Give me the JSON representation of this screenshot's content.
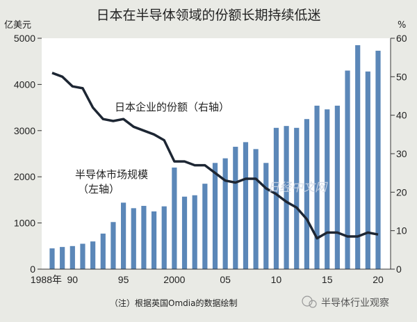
{
  "chart_data": {
    "type": "bar+line",
    "title": "日本在半导体领域的份额长期持续低迷",
    "left_axis": {
      "unit": "亿美元",
      "ticks": [
        0,
        1000,
        2000,
        3000,
        4000,
        5000
      ],
      "range": [
        0,
        5000
      ]
    },
    "right_axis": {
      "unit": "%",
      "ticks": [
        0,
        10,
        20,
        30,
        40,
        50,
        60
      ],
      "range": [
        0,
        60
      ]
    },
    "x_tick_labels": [
      {
        "year": 1988,
        "label": "1988年"
      },
      {
        "year": 1990,
        "label": "90"
      },
      {
        "year": 1995,
        "label": "95"
      },
      {
        "year": 2000,
        "label": "2000"
      },
      {
        "year": 2005,
        "label": "05"
      },
      {
        "year": 2010,
        "label": "10"
      },
      {
        "year": 2015,
        "label": "15"
      },
      {
        "year": 2020,
        "label": "20"
      }
    ],
    "years": [
      1988,
      1989,
      1990,
      1991,
      1992,
      1993,
      1994,
      1995,
      1996,
      1997,
      1998,
      1999,
      2000,
      2001,
      2002,
      2003,
      2004,
      2005,
      2006,
      2007,
      2008,
      2009,
      2010,
      2011,
      2012,
      2013,
      2014,
      2015,
      2016,
      2017,
      2018,
      2019,
      2020
    ],
    "series": [
      {
        "name": "半导体市场规模",
        "name_line2": "（左轴）",
        "type": "bar",
        "axis": "left",
        "color": "#5b87b8",
        "values": [
          450,
          480,
          500,
          550,
          600,
          770,
          1020,
          1440,
          1320,
          1370,
          1250,
          1360,
          2200,
          1570,
          1600,
          1850,
          2300,
          2400,
          2650,
          2750,
          2600,
          2300,
          3060,
          3100,
          3060,
          3250,
          3540,
          3460,
          3540,
          4300,
          4850,
          4280,
          4730
        ]
      },
      {
        "name": "日本企业的份额（右轴）",
        "type": "line",
        "axis": "right",
        "color": "#1d2633",
        "values": [
          51,
          50,
          47.5,
          47,
          42,
          39,
          38.5,
          39,
          37,
          36,
          35,
          33.5,
          28,
          28,
          27,
          27,
          25,
          23,
          22.5,
          23.5,
          23.5,
          21,
          19.5,
          17.5,
          16,
          13,
          8,
          9.5,
          9.5,
          8.5,
          8.5,
          9.5,
          9
        ]
      }
    ],
    "note": "（注）根据英国Omdia的数据绘制",
    "watermark": "日经中文网",
    "source_badge": "半导体行业观察"
  }
}
